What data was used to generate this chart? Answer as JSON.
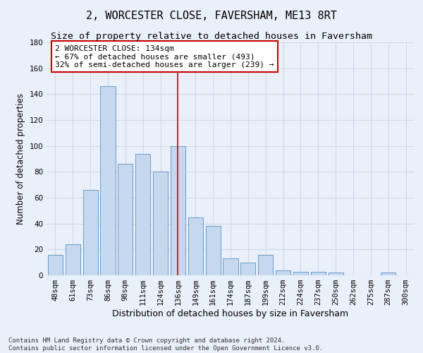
{
  "title": "2, WORCESTER CLOSE, FAVERSHAM, ME13 8RT",
  "subtitle": "Size of property relative to detached houses in Faversham",
  "xlabel": "Distribution of detached houses by size in Faversham",
  "ylabel": "Number of detached properties",
  "footer_line1": "Contains HM Land Registry data © Crown copyright and database right 2024.",
  "footer_line2": "Contains public sector information licensed under the Open Government Licence v3.0.",
  "categories": [
    "48sqm",
    "61sqm",
    "73sqm",
    "86sqm",
    "98sqm",
    "111sqm",
    "124sqm",
    "136sqm",
    "149sqm",
    "161sqm",
    "174sqm",
    "187sqm",
    "199sqm",
    "212sqm",
    "224sqm",
    "237sqm",
    "250sqm",
    "262sqm",
    "275sqm",
    "287sqm",
    "300sqm"
  ],
  "values": [
    16,
    24,
    66,
    146,
    86,
    94,
    80,
    100,
    45,
    38,
    13,
    10,
    16,
    4,
    3,
    3,
    2,
    0,
    0,
    2,
    0
  ],
  "bar_color": "#c5d8f0",
  "bar_edge_color": "#5a8fc0",
  "bg_color": "#eaf0fa",
  "grid_color": "#d0d8e8",
  "vline_x": 7,
  "vline_color": "#cc0000",
  "annotation_text": "2 WORCESTER CLOSE: 134sqm\n← 67% of detached houses are smaller (493)\n32% of semi-detached houses are larger (239) →",
  "annotation_box_facecolor": "#ffffff",
  "annotation_box_edgecolor": "#cc0000",
  "ylim": [
    0,
    180
  ],
  "yticks": [
    0,
    20,
    40,
    60,
    80,
    100,
    120,
    140,
    160,
    180
  ],
  "title_fontsize": 11,
  "subtitle_fontsize": 9.5,
  "xlabel_fontsize": 9,
  "ylabel_fontsize": 8.5,
  "tick_fontsize": 7.5,
  "annotation_fontsize": 8,
  "footer_fontsize": 6.5
}
